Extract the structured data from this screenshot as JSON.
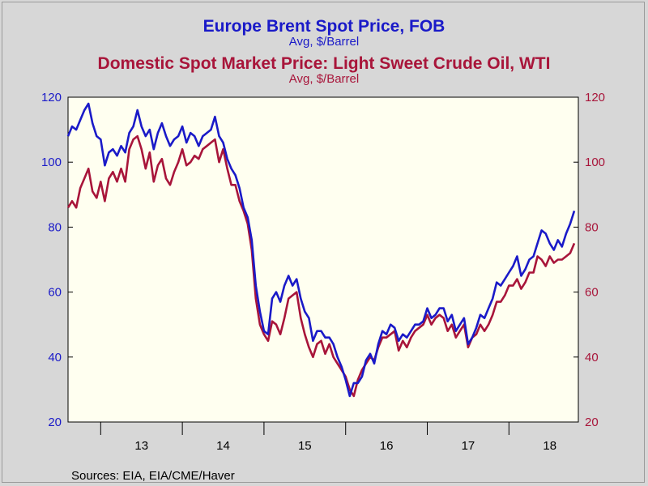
{
  "titles": {
    "series1_title": "Europe Brent Spot Price, FOB",
    "series1_sub": "Avg, $/Barrel",
    "series2_title": "Domestic Spot Market Price: Light Sweet Crude Oil, WTI",
    "series2_sub": "Avg, $/Barrel"
  },
  "source": "Sources:  EIA, EIA/CME/Haver",
  "colors": {
    "brent": "#1a1ac8",
    "wti": "#a8153a",
    "plot_bg": "#fffff0",
    "page_bg": "#d7d7d7"
  },
  "chart_data": {
    "type": "line",
    "title": "Europe Brent Spot Price, FOB / Domestic Spot Market Price: Light Sweet Crude Oil, WTI",
    "ylabel_left": "",
    "ylabel_right": "",
    "ylim": [
      20,
      120
    ],
    "y_ticks": [
      20,
      40,
      60,
      80,
      100,
      120
    ],
    "x_tick_labels": [
      "13",
      "14",
      "15",
      "16",
      "17",
      "18"
    ],
    "xlim": [
      2012.6,
      2018.85
    ],
    "grid": false,
    "series": [
      {
        "name": "Europe Brent Spot Price, FOB",
        "x": [
          2012.6,
          2012.65,
          2012.7,
          2012.75,
          2012.8,
          2012.85,
          2012.9,
          2012.95,
          2013.0,
          2013.05,
          2013.1,
          2013.15,
          2013.2,
          2013.25,
          2013.3,
          2013.35,
          2013.4,
          2013.45,
          2013.5,
          2013.55,
          2013.6,
          2013.65,
          2013.7,
          2013.75,
          2013.8,
          2013.85,
          2013.9,
          2013.95,
          2014.0,
          2014.05,
          2014.1,
          2014.15,
          2014.2,
          2014.25,
          2014.3,
          2014.35,
          2014.4,
          2014.45,
          2014.5,
          2014.55,
          2014.6,
          2014.65,
          2014.7,
          2014.75,
          2014.8,
          2014.85,
          2014.9,
          2014.95,
          2015.0,
          2015.05,
          2015.1,
          2015.15,
          2015.2,
          2015.25,
          2015.3,
          2015.35,
          2015.4,
          2015.45,
          2015.5,
          2015.55,
          2015.6,
          2015.65,
          2015.7,
          2015.75,
          2015.8,
          2015.85,
          2015.9,
          2015.95,
          2016.0,
          2016.05,
          2016.1,
          2016.15,
          2016.2,
          2016.25,
          2016.3,
          2016.35,
          2016.4,
          2016.45,
          2016.5,
          2016.55,
          2016.6,
          2016.65,
          2016.7,
          2016.75,
          2016.8,
          2016.85,
          2016.9,
          2016.95,
          2017.0,
          2017.05,
          2017.1,
          2017.15,
          2017.2,
          2017.25,
          2017.3,
          2017.35,
          2017.4,
          2017.45,
          2017.5,
          2017.55,
          2017.6,
          2017.65,
          2017.7,
          2017.75,
          2017.8,
          2017.85,
          2017.9,
          2017.95,
          2018.0,
          2018.05,
          2018.1,
          2018.15,
          2018.2,
          2018.25,
          2018.3,
          2018.35,
          2018.4,
          2018.45,
          2018.5,
          2018.55,
          2018.6,
          2018.65,
          2018.7,
          2018.75,
          2018.8
        ],
        "values": [
          108,
          111,
          110,
          113,
          116,
          118,
          112,
          108,
          107,
          99,
          103,
          104,
          102,
          105,
          103,
          109,
          111,
          116,
          111,
          108,
          110,
          104,
          109,
          112,
          108,
          105,
          107,
          108,
          111,
          106,
          109,
          108,
          105,
          108,
          109,
          110,
          114,
          108,
          106,
          101,
          98,
          96,
          92,
          86,
          83,
          76,
          62,
          54,
          48,
          47,
          58,
          60,
          57,
          62,
          65,
          62,
          64,
          58,
          54,
          52,
          45,
          48,
          48,
          46,
          46,
          44,
          40,
          37,
          33,
          28,
          32,
          32,
          34,
          39,
          41,
          38,
          44,
          48,
          47,
          50,
          49,
          45,
          47,
          46,
          48,
          50,
          50,
          51,
          55,
          52,
          53,
          55,
          55,
          51,
          53,
          48,
          50,
          52,
          44,
          46,
          49,
          53,
          52,
          55,
          58,
          63,
          62,
          64,
          66,
          68,
          71,
          65,
          67,
          70,
          71,
          75,
          79,
          78,
          75,
          73,
          76,
          74,
          78,
          81,
          85
        ],
        "color": "#1a1ac8"
      },
      {
        "name": "Domestic Spot Market Price: Light Sweet Crude Oil, WTI",
        "x": [
          2012.6,
          2012.65,
          2012.7,
          2012.75,
          2012.8,
          2012.85,
          2012.9,
          2012.95,
          2013.0,
          2013.05,
          2013.1,
          2013.15,
          2013.2,
          2013.25,
          2013.3,
          2013.35,
          2013.4,
          2013.45,
          2013.5,
          2013.55,
          2013.6,
          2013.65,
          2013.7,
          2013.75,
          2013.8,
          2013.85,
          2013.9,
          2013.95,
          2014.0,
          2014.05,
          2014.1,
          2014.15,
          2014.2,
          2014.25,
          2014.3,
          2014.35,
          2014.4,
          2014.45,
          2014.5,
          2014.55,
          2014.6,
          2014.65,
          2014.7,
          2014.75,
          2014.8,
          2014.85,
          2014.9,
          2014.95,
          2015.0,
          2015.05,
          2015.1,
          2015.15,
          2015.2,
          2015.25,
          2015.3,
          2015.35,
          2015.4,
          2015.45,
          2015.5,
          2015.55,
          2015.6,
          2015.65,
          2015.7,
          2015.75,
          2015.8,
          2015.85,
          2015.9,
          2015.95,
          2016.0,
          2016.05,
          2016.1,
          2016.15,
          2016.2,
          2016.25,
          2016.3,
          2016.35,
          2016.4,
          2016.45,
          2016.5,
          2016.55,
          2016.6,
          2016.65,
          2016.7,
          2016.75,
          2016.8,
          2016.85,
          2016.9,
          2016.95,
          2017.0,
          2017.05,
          2017.1,
          2017.15,
          2017.2,
          2017.25,
          2017.3,
          2017.35,
          2017.4,
          2017.45,
          2017.5,
          2017.55,
          2017.6,
          2017.65,
          2017.7,
          2017.75,
          2017.8,
          2017.85,
          2017.9,
          2017.95,
          2018.0,
          2018.05,
          2018.1,
          2018.15,
          2018.2,
          2018.25,
          2018.3,
          2018.35,
          2018.4,
          2018.45,
          2018.5,
          2018.55,
          2018.6,
          2018.65,
          2018.7,
          2018.75,
          2018.8
        ],
        "values": [
          86,
          88,
          86,
          92,
          95,
          98,
          91,
          89,
          94,
          88,
          95,
          97,
          94,
          98,
          94,
          104,
          107,
          108,
          104,
          98,
          103,
          94,
          99,
          101,
          95,
          93,
          97,
          100,
          104,
          99,
          100,
          102,
          101,
          104,
          105,
          106,
          107,
          100,
          104,
          98,
          93,
          93,
          88,
          85,
          81,
          73,
          58,
          50,
          47,
          45,
          51,
          50,
          47,
          52,
          58,
          59,
          60,
          52,
          47,
          43,
          40,
          44,
          45,
          41,
          44,
          40,
          38,
          36,
          34,
          30,
          28,
          33,
          36,
          38,
          40,
          39,
          43,
          46,
          46,
          47,
          48,
          42,
          45,
          43,
          46,
          48,
          49,
          50,
          53,
          50,
          52,
          53,
          52,
          48,
          50,
          46,
          48,
          50,
          43,
          46,
          47,
          50,
          48,
          50,
          53,
          57,
          57,
          59,
          62,
          62,
          64,
          61,
          63,
          66,
          66,
          71,
          70,
          68,
          71,
          69,
          70,
          70,
          71,
          72,
          75
        ],
        "color": "#a8153a"
      }
    ]
  }
}
